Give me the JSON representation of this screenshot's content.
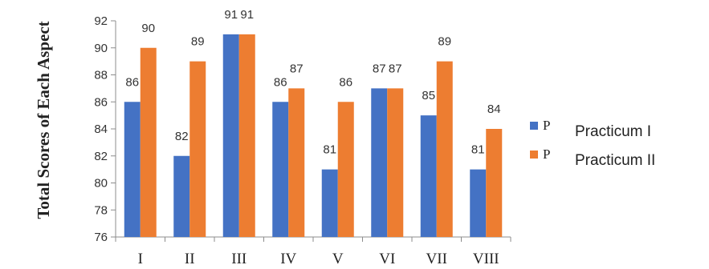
{
  "chart_data": {
    "type": "bar",
    "title": "",
    "ylabel": "Total Scores of Each Aspect",
    "xlabel": "",
    "ylim": [
      76,
      92
    ],
    "yticks": [
      76,
      78,
      80,
      82,
      84,
      86,
      88,
      90,
      92
    ],
    "categories": [
      "I",
      "II",
      "III",
      "IV",
      "V",
      "VI",
      "VII",
      "VIII"
    ],
    "series": [
      {
        "name": "Practicum I",
        "legend_marker": "P",
        "color": "#4472C4",
        "values": [
          86,
          82,
          91,
          86,
          81,
          87,
          85,
          81
        ]
      },
      {
        "name": "Practicum II",
        "legend_marker": "P",
        "color": "#ED7D31",
        "values": [
          90,
          89,
          91,
          87,
          86,
          87,
          89,
          84
        ]
      }
    ],
    "data_labels": true,
    "legend_position": "right",
    "grid": false
  }
}
